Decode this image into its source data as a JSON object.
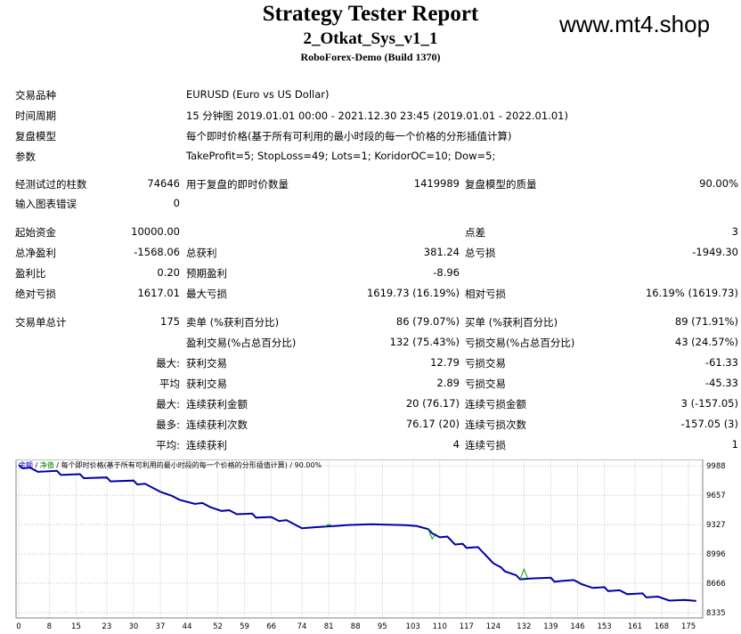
{
  "header": {
    "title": "Strategy Tester Report",
    "ea_name": "2_Otkat_Sys_v1_1",
    "build": "RoboForex-Demo (Build 1370)",
    "watermark": "www.mt4.shop"
  },
  "info": {
    "symbol_label": "交易品种",
    "symbol_value": "EURUSD (Euro vs US Dollar)",
    "period_label": "时间周期",
    "period_value": "15 分钟图 2019.01.01 00:00 - 2021.12.30 23:45 (2019.01.01 - 2022.01.01)",
    "model_label": "复盘模型",
    "model_value": "每个即时价格(基于所有可利用的最小时段的每一个价格的分形插值计算)",
    "params_label": "参数",
    "params_value": "TakeProfit=5; StopLoss=49; Lots=1; KoridorOC=10; Dow=5;"
  },
  "stats": {
    "bars_label": "经测试过的柱数",
    "bars_value": "74646",
    "ticks_label": "用于复盘的即时价数量",
    "ticks_value": "1419989",
    "quality_label": "复盘模型的质量",
    "quality_value": "90.00%",
    "errors_label": "输入图表错误",
    "errors_value": "0",
    "deposit_label": "起始资金",
    "deposit_value": "10000.00",
    "spread_label": "点差",
    "spread_value": "3",
    "net_label": "总净盈利",
    "net_value": "-1568.06",
    "gross_profit_label": "总获利",
    "gross_profit_value": "381.24",
    "gross_loss_label": "总亏损",
    "gross_loss_value": "-1949.30",
    "pf_label": "盈利比",
    "pf_value": "0.20",
    "expected_label": "预期盈利",
    "expected_value": "-8.96",
    "abs_dd_label": "绝对亏损",
    "abs_dd_value": "1617.01",
    "max_dd_label": "最大亏损",
    "max_dd_value": "1619.73 (16.19%)",
    "rel_dd_label": "相对亏损",
    "rel_dd_value": "16.19% (1619.73)",
    "total_trades_label": "交易单总计",
    "total_trades_value": "175",
    "short_label": "卖单 (%获利百分比)",
    "short_value": "86 (79.07%)",
    "long_label": "买单 (%获利百分比)",
    "long_value": "89 (71.91%)",
    "profit_trades_label": "盈利交易(%占总百分比)",
    "profit_trades_value": "132 (75.43%)",
    "loss_trades_label": "亏损交易(%占总百分比)",
    "loss_trades_value": "43 (24.57%)",
    "largest_prefix": "最大:",
    "largest_profit_label": "获利交易",
    "largest_profit_value": "12.79",
    "largest_loss_label": "亏损交易",
    "largest_loss_value": "-61.33",
    "average_prefix": "平均",
    "average_profit_label": "获利交易",
    "average_profit_value": "2.89",
    "average_loss_label": "亏损交易",
    "average_loss_value": "-45.33",
    "max_prefix": "最大:",
    "max_consec_wins_label": "连续获利金额",
    "max_consec_wins_value": "20 (76.17)",
    "max_consec_losses_label": "连续亏损金额",
    "max_consec_losses_value": "3 (-157.05)",
    "most_prefix": "最多:",
    "max_consec_profit_label": "连续获利次数",
    "max_consec_profit_value": "76.17 (20)",
    "max_consec_loss_label": "连续亏损次数",
    "max_consec_loss_value": "-157.05 (3)",
    "avg_prefix": "平均:",
    "avg_consec_wins_label": "连续获利",
    "avg_consec_wins_value": "4",
    "avg_consec_losses_label": "连续亏损",
    "avg_consec_losses_value": "1"
  },
  "chart_data": {
    "type": "line",
    "legend": [
      "余额",
      "/",
      "净值",
      "/",
      "每个即时价格(基于所有可利用的最小时段的每一个价格的分形插值计算)",
      "/",
      "90.00%"
    ],
    "colors": {
      "balance": "#0000a8",
      "equity": "#00a000",
      "legend_balance": "#0000c0",
      "legend_equity": "#008000",
      "grid": "#c0c0c0"
    },
    "ylim": [
      8335,
      10000
    ],
    "xlim": [
      0,
      178
    ],
    "y_ticks": [
      9988,
      9657,
      9327,
      8996,
      8666,
      8335
    ],
    "x_ticks": [
      0,
      8,
      15,
      23,
      30,
      37,
      44,
      52,
      59,
      66,
      74,
      81,
      88,
      95,
      103,
      110,
      117,
      124,
      132,
      139,
      146,
      153,
      161,
      168,
      175
    ],
    "series": [
      {
        "values": [
          [
            0,
            10000
          ],
          [
            1,
            9960
          ],
          [
            3,
            9968
          ],
          [
            5,
            9921
          ],
          [
            10,
            9932
          ],
          [
            11,
            9886
          ],
          [
            16,
            9895
          ],
          [
            17,
            9850
          ],
          [
            23,
            9858
          ],
          [
            24,
            9813
          ],
          [
            30,
            9822
          ],
          [
            31,
            9778
          ],
          [
            33,
            9786
          ],
          [
            35,
            9741
          ],
          [
            37,
            9696
          ],
          [
            40,
            9651
          ],
          [
            42,
            9606
          ],
          [
            46,
            9560
          ],
          [
            48,
            9570
          ],
          [
            50,
            9525
          ],
          [
            53,
            9480
          ],
          [
            55,
            9488
          ],
          [
            57,
            9443
          ],
          [
            61,
            9450
          ],
          [
            62,
            9405
          ],
          [
            66,
            9412
          ],
          [
            68,
            9367
          ],
          [
            70,
            9377
          ],
          [
            72,
            9331
          ],
          [
            74,
            9286
          ],
          [
            77,
            9295
          ],
          [
            80,
            9304
          ],
          [
            83,
            9312
          ],
          [
            86,
            9322
          ],
          [
            92,
            9330
          ],
          [
            101,
            9320
          ],
          [
            104,
            9310
          ],
          [
            107,
            9275
          ],
          [
            108,
            9229
          ],
          [
            110,
            9184
          ],
          [
            112,
            9192
          ],
          [
            113,
            9147
          ],
          [
            114,
            9102
          ],
          [
            116,
            9110
          ],
          [
            117,
            9064
          ],
          [
            120,
            9073
          ],
          [
            121,
            9027
          ],
          [
            122,
            8982
          ],
          [
            123,
            8937
          ],
          [
            124,
            8891
          ],
          [
            126,
            8846
          ],
          [
            127,
            8800
          ],
          [
            130,
            8755
          ],
          [
            131,
            8710
          ],
          [
            134,
            8720
          ],
          [
            139,
            8728
          ],
          [
            140,
            8683
          ],
          [
            142,
            8692
          ],
          [
            145,
            8702
          ],
          [
            147,
            8657
          ],
          [
            150,
            8613
          ],
          [
            153,
            8622
          ],
          [
            154,
            8578
          ],
          [
            157,
            8587
          ],
          [
            159,
            8543
          ],
          [
            163,
            8552
          ],
          [
            164,
            8507
          ],
          [
            167,
            8516
          ],
          [
            170,
            8470
          ],
          [
            174,
            8478
          ],
          [
            177,
            8466
          ]
        ]
      },
      {
        "values": [
          [
            80,
            9304
          ],
          [
            81,
            9330
          ],
          [
            82,
            9312
          ],
          [
            107,
            9275
          ],
          [
            108,
            9165
          ],
          [
            109,
            9229
          ],
          [
            131,
            8710
          ],
          [
            132,
            8825
          ],
          [
            133,
            8720
          ]
        ]
      }
    ]
  }
}
